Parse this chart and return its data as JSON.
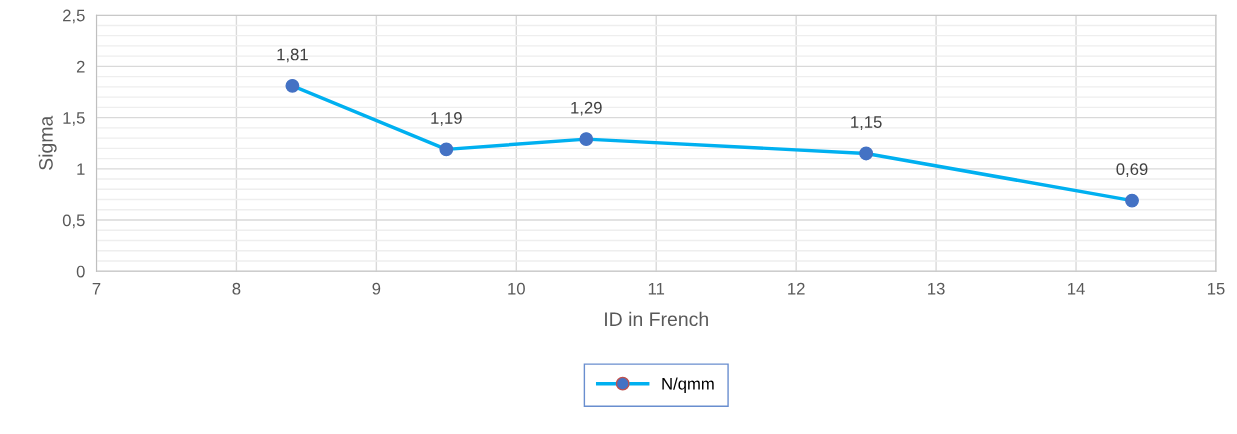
{
  "chart_data": {
    "type": "line",
    "xlabel": "ID in French",
    "ylabel": "Sigma",
    "x": [
      8.4,
      9.5,
      10.5,
      12.5,
      14.4
    ],
    "series": [
      {
        "name": "N/qmm",
        "color": "#00b0f0",
        "colors": [
          "#4472c4",
          "#4472c4",
          "#4472c4",
          "#4472c4",
          "#4472c4"
        ],
        "values": [
          1.81,
          1.19,
          1.29,
          1.15,
          0.69
        ],
        "value_labels": [
          "1,81",
          "1,19",
          "1,29",
          "1,15",
          "0,69"
        ]
      }
    ],
    "xlim": [
      7,
      15
    ],
    "xticks": [
      7,
      8,
      9,
      10,
      11,
      12,
      13,
      14,
      15
    ],
    "ylim": [
      0,
      2.5
    ],
    "yticks": [
      {
        "value": 0,
        "label": "0"
      },
      {
        "value": 0.1,
        "label": null
      },
      {
        "value": 0.2,
        "label": null
      },
      {
        "value": 0.3,
        "label": null
      },
      {
        "value": 0.4,
        "label": null
      },
      {
        "value": 0.5,
        "label": "0,5"
      },
      {
        "value": 0.6,
        "label": null
      },
      {
        "value": 0.7,
        "label": null
      },
      {
        "value": 0.8,
        "label": null
      },
      {
        "value": 0.9,
        "label": null
      },
      {
        "value": 1,
        "label": "1"
      },
      {
        "value": 1.1,
        "label": null
      },
      {
        "value": 1.2,
        "label": null
      },
      {
        "value": 1.3,
        "label": null
      },
      {
        "value": 1.4,
        "label": null
      },
      {
        "value": 1.5,
        "label": "1,5"
      },
      {
        "value": 1.6,
        "label": null
      },
      {
        "value": 1.7,
        "label": null
      },
      {
        "value": 1.8,
        "label": null
      },
      {
        "value": 1.9,
        "label": null
      },
      {
        "value": 2,
        "label": "2"
      },
      {
        "value": 2.1,
        "label": null
      },
      {
        "value": 2.2,
        "label": null
      },
      {
        "value": 2.3,
        "label": null
      },
      {
        "value": 2.4,
        "label": null
      },
      {
        "value": 2.5,
        "label": "2,5"
      }
    ],
    "grid": true,
    "legend": "bottom",
    "marker": "circle",
    "line_style": "solid"
  }
}
